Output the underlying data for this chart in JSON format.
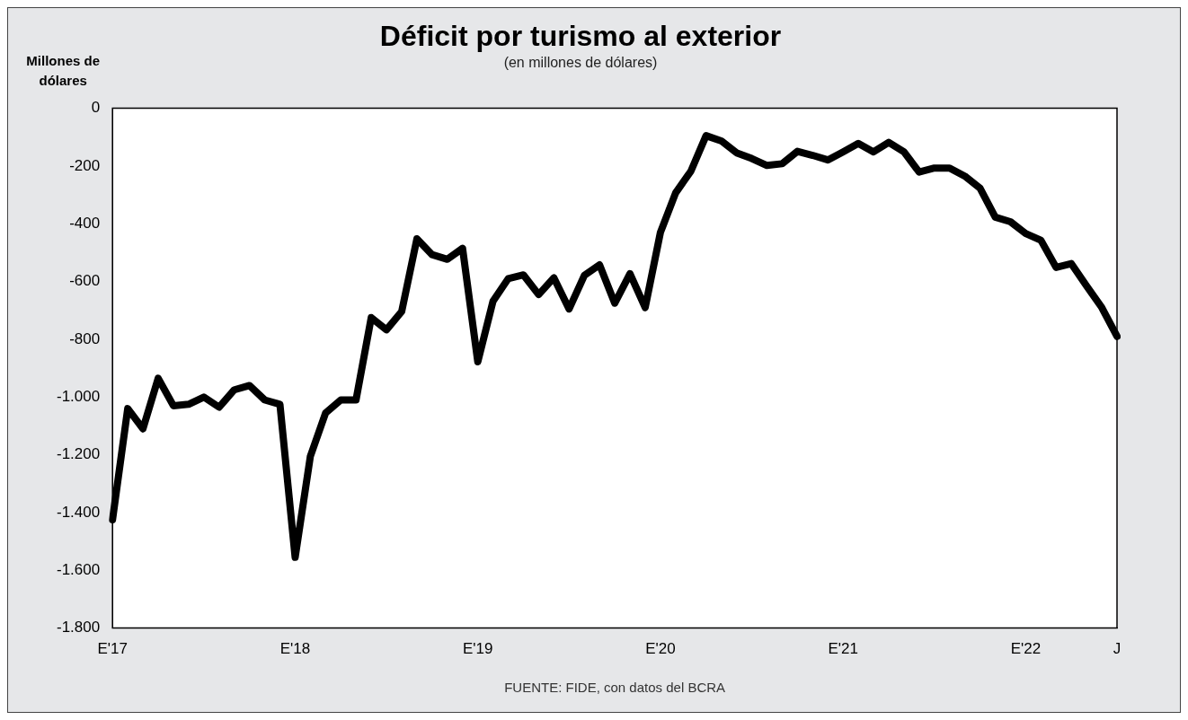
{
  "chart_data": {
    "type": "line",
    "title": "Déficit por turismo al exterior",
    "subtitle": "(en millones de dólares)",
    "ylabel": "Millones de dólares",
    "annotations": [
      "FUENTE: FIDE, con datos del BCRA"
    ],
    "categories": [
      "E'17",
      null,
      null,
      null,
      null,
      null,
      null,
      null,
      null,
      null,
      null,
      null,
      "E'18",
      null,
      null,
      null,
      null,
      null,
      null,
      null,
      null,
      null,
      null,
      null,
      "E'19",
      null,
      null,
      null,
      null,
      null,
      null,
      null,
      null,
      null,
      null,
      null,
      "E'20",
      null,
      null,
      null,
      null,
      null,
      null,
      null,
      null,
      null,
      null,
      null,
      "E'21",
      null,
      null,
      null,
      null,
      null,
      null,
      null,
      null,
      null,
      null,
      null,
      "E'22",
      null,
      null,
      null,
      null,
      null,
      "J"
    ],
    "series": [
      {
        "color": "#000000",
        "values": [
          -1425,
          -1040,
          -1110,
          -935,
          -1030,
          -1025,
          -1000,
          -1035,
          -975,
          -960,
          -1010,
          -1025,
          -1555,
          -1205,
          -1055,
          -1010,
          -1010,
          -725,
          -767,
          -704,
          -452,
          -507,
          -523,
          -485,
          -878,
          -668,
          -590,
          -577,
          -645,
          -587,
          -695,
          -579,
          -542,
          -675,
          -573,
          -690,
          -430,
          -293,
          -218,
          -95,
          -113,
          -154,
          -174,
          -198,
          -192,
          -149,
          -163,
          -179,
          -151,
          -122,
          -151,
          -118,
          -151,
          -221,
          -207,
          -207,
          -235,
          -277,
          -377,
          -393,
          -434,
          -457,
          -551,
          -538,
          -615,
          -690,
          -790
        ]
      }
    ],
    "ylim": [
      -1800,
      0
    ],
    "yticks": [
      {
        "value": -1800,
        "label": "-1.800"
      },
      {
        "value": -1600,
        "label": "-1.600"
      },
      {
        "value": -1400,
        "label": "-1.400"
      },
      {
        "value": -1200,
        "label": "-1.200"
      },
      {
        "value": -1000,
        "label": "-1.000"
      },
      -800,
      -600,
      -400,
      -200,
      0
    ],
    "grid": false,
    "legend": false,
    "marker": "none",
    "line_style": "solid"
  }
}
